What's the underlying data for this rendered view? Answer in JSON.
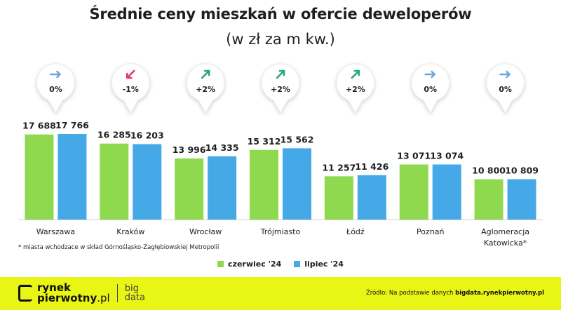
{
  "title": "Średnie ceny mieszkań w ofercie deweloperów",
  "subtitle": "(w zł za m kw.)",
  "footnote": "* miasta wchodzace w skład Górnośląsko-Zagłębiowskiej Metropolii",
  "source_prefix": "Źródło: Na podstawie danych ",
  "source_link": "bigdata.rynekpierwotny.pl",
  "brand_line1": "rynek",
  "brand_line2": "pierwotny",
  "brand_tld": ".pl",
  "bigdata_line1": "big",
  "bigdata_line2": "data",
  "colors": {
    "june": "#8fd94e",
    "july": "#45a9e8",
    "up_arrow": "#2aa878",
    "down_arrow": "#e8317a",
    "flat_arrow": "#6aa7dc",
    "footer": "#e9f514"
  },
  "chart_data": {
    "type": "bar",
    "categories": [
      "Warszawa",
      "Kraków",
      "Wrocław",
      "Trójmiasto",
      "Łódź",
      "Poznań",
      "Aglomeracja Katowicka*"
    ],
    "series": [
      {
        "name": "czerwiec '24",
        "values": [
          17688,
          16285,
          13996,
          15312,
          11257,
          13071,
          10800
        ],
        "labels": [
          "17 688",
          "16 285",
          "13 996",
          "15 312",
          "11 257",
          "13 071",
          "10 800"
        ]
      },
      {
        "name": "lipiec '24",
        "values": [
          17766,
          16203,
          14335,
          15562,
          11426,
          13074,
          10809
        ],
        "labels": [
          "17 766",
          "16 203",
          "14 335",
          "15 562",
          "11 426",
          "13 074",
          "10 809"
        ]
      }
    ],
    "changes": [
      "0%",
      "-1%",
      "+2%",
      "+2%",
      "+2%",
      "0%",
      "0%"
    ],
    "change_direction": [
      "flat",
      "down",
      "up",
      "up",
      "up",
      "flat",
      "flat"
    ],
    "legend": "bottom-center",
    "grid": false
  }
}
